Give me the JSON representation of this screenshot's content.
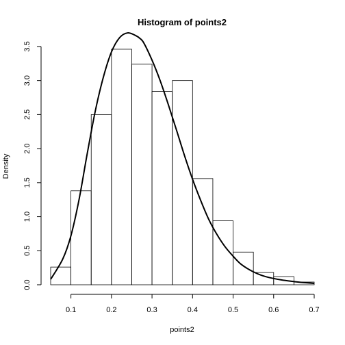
{
  "chart_data": {
    "type": "bar",
    "title": "Histogram of points2",
    "xlabel": "points2",
    "ylabel": "Density",
    "xlim": [
      0.05,
      0.7
    ],
    "ylim": [
      0,
      3.6
    ],
    "x_ticks": [
      0.1,
      0.2,
      0.3,
      0.4,
      0.5,
      0.6,
      0.7
    ],
    "x_tick_labels": [
      "0.1",
      "0.2",
      "0.3",
      "0.4",
      "0.5",
      "0.6",
      "0.7"
    ],
    "y_ticks": [
      0.0,
      0.5,
      1.0,
      1.5,
      2.0,
      2.5,
      3.0,
      3.5
    ],
    "y_tick_labels": [
      "0.0",
      "0.5",
      "1.0",
      "1.5",
      "2.0",
      "2.5",
      "3.0",
      "3.5"
    ],
    "bins": [
      {
        "start": 0.05,
        "end": 0.1,
        "density": 0.26
      },
      {
        "start": 0.1,
        "end": 0.15,
        "density": 1.38
      },
      {
        "start": 0.15,
        "end": 0.2,
        "density": 2.5
      },
      {
        "start": 0.2,
        "end": 0.25,
        "density": 3.46
      },
      {
        "start": 0.25,
        "end": 0.3,
        "density": 3.24
      },
      {
        "start": 0.3,
        "end": 0.35,
        "density": 2.84
      },
      {
        "start": 0.35,
        "end": 0.4,
        "density": 3.0
      },
      {
        "start": 0.4,
        "end": 0.45,
        "density": 1.56
      },
      {
        "start": 0.45,
        "end": 0.5,
        "density": 0.94
      },
      {
        "start": 0.5,
        "end": 0.55,
        "density": 0.48
      },
      {
        "start": 0.55,
        "end": 0.6,
        "density": 0.18
      },
      {
        "start": 0.6,
        "end": 0.65,
        "density": 0.12
      },
      {
        "start": 0.65,
        "end": 0.7,
        "density": 0.04
      }
    ],
    "density_curve": {
      "x": [
        0.05,
        0.08,
        0.1,
        0.12,
        0.14,
        0.16,
        0.18,
        0.2,
        0.22,
        0.24,
        0.26,
        0.27,
        0.28,
        0.3,
        0.32,
        0.34,
        0.36,
        0.38,
        0.4,
        0.42,
        0.44,
        0.46,
        0.48,
        0.5,
        0.52,
        0.55,
        0.58,
        0.62,
        0.66,
        0.7
      ],
      "y": [
        0.08,
        0.38,
        0.72,
        1.25,
        1.92,
        2.55,
        3.05,
        3.42,
        3.63,
        3.7,
        3.66,
        3.62,
        3.55,
        3.3,
        3.0,
        2.65,
        2.28,
        1.9,
        1.55,
        1.24,
        0.96,
        0.74,
        0.56,
        0.42,
        0.3,
        0.19,
        0.12,
        0.07,
        0.04,
        0.02
      ]
    }
  }
}
